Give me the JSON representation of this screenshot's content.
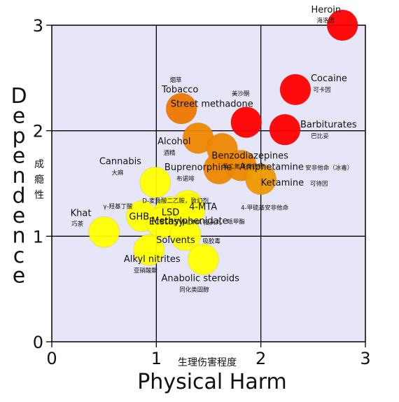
{
  "chart_data": {
    "type": "scatter",
    "xlabel": "Physical Harm",
    "xlabel_cn": "生理伤害程度",
    "ylabel": "Dependence",
    "ylabel_cn": "成瘾性",
    "xlim": [
      0,
      3
    ],
    "ylim": [
      0,
      3
    ],
    "x_ticks": [
      "0",
      "1",
      "2",
      "3"
    ],
    "y_ticks": [
      "0",
      "1",
      "2",
      "3"
    ],
    "grid": true,
    "plot_background": "#e6e6f8",
    "points": [
      {
        "name": "Heroin",
        "name_cn": "海洛因",
        "x": 2.78,
        "y": 3.0,
        "color": "#ff0000"
      },
      {
        "name": "Cocaine",
        "name_cn": "可卡因",
        "x": 2.33,
        "y": 2.39,
        "color": "#ff0000"
      },
      {
        "name": "Street methadone",
        "name_cn": "美沙酮",
        "x": 1.86,
        "y": 2.08,
        "color": "#ff0000"
      },
      {
        "name": "Barbiturates",
        "name_cn": "巴比妥",
        "x": 2.23,
        "y": 2.01,
        "color": "#ff0000"
      },
      {
        "name": "Tobacco",
        "name_cn": "烟草",
        "x": 1.24,
        "y": 2.21,
        "color": "#ee7700"
      },
      {
        "name": "Alcohol",
        "name_cn": "酒精",
        "x": 1.4,
        "y": 1.93,
        "color": "#ee8800"
      },
      {
        "name": "Benzodiazepines",
        "name_cn": "苯二氮平类药物",
        "x": 1.63,
        "y": 1.83,
        "color": "#ee8800"
      },
      {
        "name": "Buprenorphine",
        "name_cn": "布诺啡",
        "x": 1.6,
        "y": 1.64,
        "color": "#ee8800"
      },
      {
        "name": "Amphetamine",
        "name_cn": "安非他命（冰毒）",
        "x": 1.81,
        "y": 1.67,
        "color": "#ee8800"
      },
      {
        "name": "Ketamine",
        "name_cn": "可待因",
        "x": 2.0,
        "y": 1.54,
        "color": "#ee9900"
      },
      {
        "name": "Cannabis",
        "name_cn": "大麻",
        "x": 0.99,
        "y": 1.51,
        "color": "#ffff00"
      },
      {
        "name": "LSD",
        "name_cn": "D-麦角酸二乙胺，致幻剂",
        "x": 1.13,
        "y": 1.23,
        "color": "#ffff00"
      },
      {
        "name": "4-MTA",
        "name_cn": "4-甲硫基安非他命",
        "x": 1.3,
        "y": 1.29,
        "color": "#ffff00"
      },
      {
        "name": "Methylphenidate",
        "name_cn": "哌甲酯",
        "x": 1.32,
        "y": 1.25,
        "color": "#ffff00"
      },
      {
        "name": "GHB",
        "name_cn": "γ-羟基丁酸",
        "x": 0.86,
        "y": 1.19,
        "color": "#ffff00"
      },
      {
        "name": "Ecstasy",
        "name_cn": "MDMA 摇头丸",
        "x": 1.05,
        "y": 1.13,
        "color": "#ffff00"
      },
      {
        "name": "Solvents",
        "name_cn": "吸胶毒",
        "x": 1.28,
        "y": 1.01,
        "color": "#ffff00"
      },
      {
        "name": "Khat",
        "name_cn": "巧茶",
        "x": 0.5,
        "y": 1.04,
        "color": "#ffff00"
      },
      {
        "name": "Alkyl nitrites",
        "name_cn": "亚硝酸酯",
        "x": 0.93,
        "y": 0.87,
        "color": "#ffff00"
      },
      {
        "name": "Anabolic steroids",
        "name_cn": "同化类固醇",
        "x": 1.45,
        "y": 0.78,
        "color": "#ffff00"
      }
    ]
  }
}
